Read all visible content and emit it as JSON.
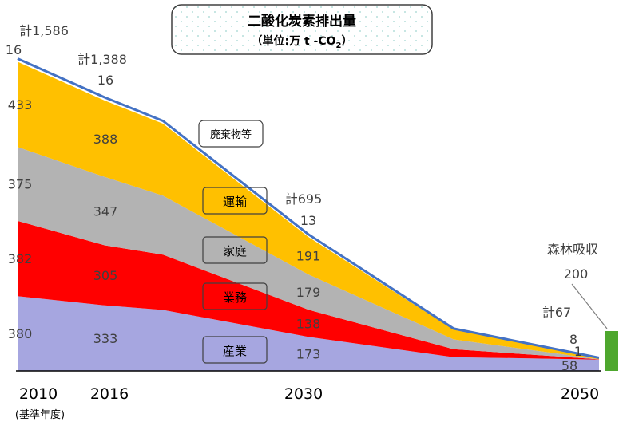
{
  "chart_data": {
    "type": "area",
    "title": "二酸化炭素排出量",
    "subtitle_prefix": "（単位:万 t -CO",
    "subtitle_sub": "2",
    "subtitle_suffix": "）",
    "x": [
      2010,
      2016,
      2020,
      2030,
      2040,
      2050
    ],
    "x_tick_labels": [
      "2010",
      "2016",
      "2030",
      "2050"
    ],
    "x_tick_values": [
      2010,
      2016,
      2030,
      2050
    ],
    "base_year_note": "(基準年度)",
    "ylim": [
      0,
      1600
    ],
    "grid": false,
    "colors": {
      "industry": "#a6a6e0",
      "business": "#ff0000",
      "household": "#b3b3b3",
      "transport": "#ffc000",
      "waste": "#ffffff",
      "line": "#4472c4",
      "forest": "#4ea72e",
      "frame": "#404040"
    },
    "series": [
      {
        "key": "industry",
        "name": "産業",
        "values": [
          380,
          333,
          310,
          173,
          70,
          58
        ]
      },
      {
        "key": "business",
        "name": "業務",
        "values": [
          382,
          305,
          280,
          138,
          40,
          1
        ]
      },
      {
        "key": "household",
        "name": "家庭",
        "values": [
          375,
          347,
          300,
          179,
          50,
          0
        ]
      },
      {
        "key": "transport",
        "name": "運輸",
        "values": [
          433,
          388,
          366,
          191,
          50,
          8
        ]
      },
      {
        "key": "waste",
        "name": "廃棄物等",
        "values": [
          16,
          16,
          14,
          13,
          5,
          0
        ]
      }
    ],
    "totals": [
      {
        "x": 2010,
        "label": "計1,586"
      },
      {
        "x": 2016,
        "label": "計1,388"
      },
      {
        "x": 2030,
        "label": "計695"
      },
      {
        "x": 2050,
        "label": "計67"
      }
    ],
    "data_labels": [
      {
        "x": 2010,
        "series": "waste",
        "text": "16"
      },
      {
        "x": 2010,
        "series": "transport",
        "text": "433"
      },
      {
        "x": 2010,
        "series": "household",
        "text": "375"
      },
      {
        "x": 2010,
        "series": "business",
        "text": "382"
      },
      {
        "x": 2010,
        "series": "industry",
        "text": "380"
      },
      {
        "x": 2016,
        "series": "waste",
        "text": "16"
      },
      {
        "x": 2016,
        "series": "transport",
        "text": "388"
      },
      {
        "x": 2016,
        "series": "household",
        "text": "347"
      },
      {
        "x": 2016,
        "series": "business",
        "text": "305"
      },
      {
        "x": 2016,
        "series": "industry",
        "text": "333"
      },
      {
        "x": 2030,
        "series": "waste",
        "text": "13"
      },
      {
        "x": 2030,
        "series": "transport",
        "text": "191"
      },
      {
        "x": 2030,
        "series": "household",
        "text": "179"
      },
      {
        "x": 2030,
        "series": "business",
        "text": "138"
      },
      {
        "x": 2030,
        "series": "industry",
        "text": "173"
      },
      {
        "x": 2050,
        "series": "transport",
        "text": "8"
      },
      {
        "x": 2050,
        "series": "business",
        "text": "1"
      },
      {
        "x": 2050,
        "series": "industry",
        "text": "58"
      }
    ],
    "forest_absorption": {
      "label": "森林吸収",
      "value": 200,
      "value_label": "200"
    }
  }
}
